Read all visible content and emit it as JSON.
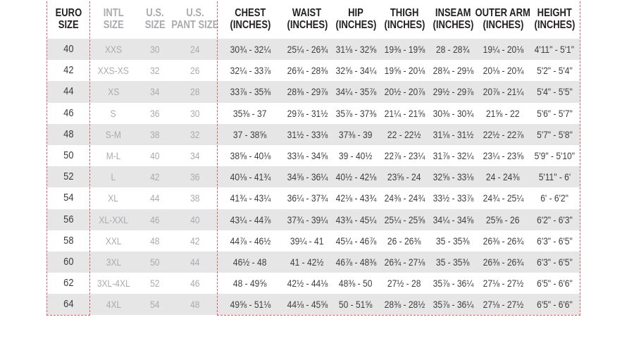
{
  "colors": {
    "accent_red": "#dc5a60",
    "stripe_gray": "#e6e6e7",
    "header_black": "#231f20",
    "muted_gray": "#a9abae",
    "value_dark": "#3e3e40"
  },
  "chart_data": {
    "type": "table",
    "title": "Men's size chart (Euro / International / U.S. sizes with body measurements)",
    "columns": [
      {
        "key": "euro",
        "line1": "EURO",
        "line2": "SIZE",
        "group": "euro"
      },
      {
        "key": "intl",
        "line1": "INTL",
        "line2": "SIZE",
        "group": "muted"
      },
      {
        "key": "us",
        "line1": "U.S.",
        "line2": "SIZE",
        "group": "muted"
      },
      {
        "key": "pant",
        "line1": "U.S.",
        "line2": "PANT SIZE",
        "group": "muted"
      },
      {
        "key": "chest",
        "line1": "CHEST",
        "line2": "(INCHES)",
        "group": "measure"
      },
      {
        "key": "waist",
        "line1": "WAIST",
        "line2": "(INCHES)",
        "group": "measure"
      },
      {
        "key": "hip",
        "line1": "HIP",
        "line2": "(INCHES)",
        "group": "measure"
      },
      {
        "key": "thigh",
        "line1": "THIGH",
        "line2": "(INCHES)",
        "group": "measure"
      },
      {
        "key": "inseam",
        "line1": "INSEAM",
        "line2": "(INCHES)",
        "group": "measure"
      },
      {
        "key": "outer_arm",
        "line1": "OUTER ARM",
        "line2": "(INCHES)",
        "group": "measure"
      },
      {
        "key": "height",
        "line1": "HEIGHT",
        "line2": "(INCHES)",
        "group": "measure"
      }
    ],
    "rows": [
      {
        "euro": "40",
        "intl": "XXS",
        "us": "30",
        "pant": "24",
        "chest": "30¾ - 32¼",
        "waist": "25¼ - 26¾",
        "hip": "31⅛ - 32⅝",
        "thigh": "19⅜ - 19⅝",
        "inseam": "28 - 28¾",
        "outer_arm": "19¼ - 20⅛",
        "height": "4'11\" - 5'1\""
      },
      {
        "euro": "42",
        "intl": "XXS-XS",
        "us": "32",
        "pant": "26",
        "chest": "32¼ - 33⅞",
        "waist": "26¾ - 28⅜",
        "hip": "32⅝ - 34¼",
        "thigh": "19⅝ - 20⅛",
        "inseam": "28¾ - 29⅛",
        "outer_arm": "20⅛ - 20¾",
        "height": "5'2\" - 5'4\""
      },
      {
        "euro": "44",
        "intl": "XS",
        "us": "34",
        "pant": "28",
        "chest": "33⅞ - 35⅜",
        "waist": "28⅜ - 29⅞",
        "hip": "34¼ - 35⅞",
        "thigh": "20½ - 20⅞",
        "inseam": "29½ - 29⅞",
        "outer_arm": "20⅞ - 21¼",
        "height": "5'4\" - 5'5\""
      },
      {
        "euro": "46",
        "intl": "S",
        "us": "36",
        "pant": "30",
        "chest": "35⅜ - 37",
        "waist": "29⅞ - 31½",
        "hip": "35⅞ - 37⅜",
        "thigh": "21¼ - 21⅝",
        "inseam": "30⅜ - 30¾",
        "outer_arm": "21⅝ - 22",
        "height": "5'6\" - 5'7\""
      },
      {
        "euro": "48",
        "intl": "S-M",
        "us": "38",
        "pant": "32",
        "chest": "37 - 38⅝",
        "waist": "31½ - 33⅛",
        "hip": "37⅜ - 39",
        "thigh": "22 - 22½",
        "inseam": "31⅛ - 31½",
        "outer_arm": "22½ - 22⅞",
        "height": "5'7\" - 5'8\""
      },
      {
        "euro": "50",
        "intl": "M-L",
        "us": "40",
        "pant": "34",
        "chest": "38⅝ - 40⅛",
        "waist": "33⅛ - 34⅝",
        "hip": "39 - 40½",
        "thigh": "22⅞ - 23¼",
        "inseam": "31⅞ - 32¼",
        "outer_arm": "23¼ - 23⅝",
        "height": "5'9\" - 5'10\""
      },
      {
        "euro": "52",
        "intl": "L",
        "us": "42",
        "pant": "36",
        "chest": "40⅛ - 41¾",
        "waist": "34⅝ - 36¼",
        "hip": "40½ - 42⅛",
        "thigh": "23⅝ - 24",
        "inseam": "32⅝ - 33⅛",
        "outer_arm": "24 - 24⅜",
        "height": "5'11\" - 6'"
      },
      {
        "euro": "54",
        "intl": "XL",
        "us": "44",
        "pant": "38",
        "chest": "41¾ - 43¼",
        "waist": "36¼ - 37¾",
        "hip": "42⅛ - 43¾",
        "thigh": "24⅜ - 24¾",
        "inseam": "33½ - 33⅞",
        "outer_arm": "24¾ - 25¼",
        "height": "6' - 6'2\""
      },
      {
        "euro": "56",
        "intl": "XL-XXL",
        "us": "46",
        "pant": "40",
        "chest": "43¼ - 44⅞",
        "waist": "37¾ - 39¼",
        "hip": "43¾ - 45¼",
        "thigh": "25¼ - 25⅝",
        "inseam": "34¼ - 34⅝",
        "outer_arm": "25⅝ - 26",
        "height": "6'2\" - 6'3\""
      },
      {
        "euro": "58",
        "intl": "XXL",
        "us": "48",
        "pant": "42",
        "chest": "44⅞ - 46½",
        "waist": "39¼ - 41",
        "hip": "45¼ - 46⅞",
        "thigh": "26 - 26⅜",
        "inseam": "35 - 35⅜",
        "outer_arm": "26⅜ - 26¾",
        "height": "6'3\" - 6'5\""
      },
      {
        "euro": "60",
        "intl": "3XL",
        "us": "50",
        "pant": "44",
        "chest": "46½ - 48",
        "waist": "41 - 42½",
        "hip": "46⅞ - 48⅜",
        "thigh": "26¾ - 27⅛",
        "inseam": "35 - 35⅜",
        "outer_arm": "26⅜ - 26¾",
        "height": "6'3\" - 6'5\""
      },
      {
        "euro": "62",
        "intl": "3XL-4XL",
        "us": "52",
        "pant": "46",
        "chest": "48 - 49⅝",
        "waist": "42½ - 44⅛",
        "hip": "48⅜ - 50",
        "thigh": "27½ - 28",
        "inseam": "35⅞ - 36¼",
        "outer_arm": "27⅛ - 27½",
        "height": "6'5\" - 6'6\""
      },
      {
        "euro": "64",
        "intl": "4XL",
        "us": "54",
        "pant": "48",
        "chest": "49⅝ - 51⅛",
        "waist": "44⅛ - 45⅝",
        "hip": "50 - 51⅝",
        "thigh": "28⅜ - 28½",
        "inseam": "35⅞ - 36¼",
        "outer_arm": "27⅛ - 27½",
        "height": "6'5\" - 6'6\""
      }
    ]
  }
}
